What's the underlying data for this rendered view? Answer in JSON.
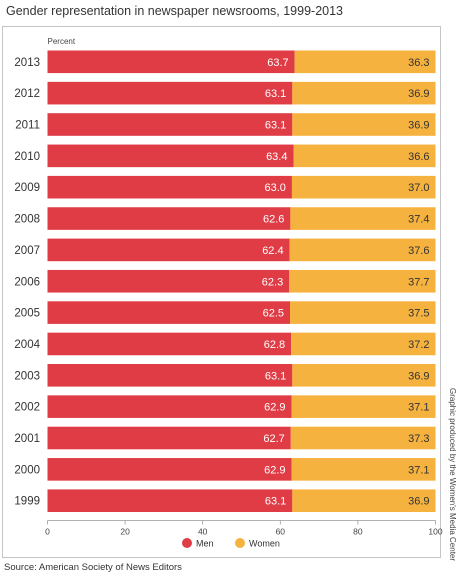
{
  "title": "Gender representation in newspaper newsrooms, 1999-2013",
  "side_note": "Graphic produced by the Women's Media Center",
  "source": "Source: American Society of News Editors",
  "chart_data": {
    "type": "bar",
    "stacked": true,
    "orientation": "horizontal",
    "categories": [
      "2013",
      "2012",
      "2011",
      "2010",
      "2009",
      "2008",
      "2007",
      "2006",
      "2005",
      "2004",
      "2003",
      "2002",
      "2001",
      "2000",
      "1999"
    ],
    "series": [
      {
        "name": "Men",
        "color": "#e03c45",
        "values": [
          63.7,
          63.1,
          63.1,
          63.4,
          63.0,
          62.6,
          62.4,
          62.3,
          62.5,
          62.8,
          63.1,
          62.9,
          62.7,
          62.9,
          63.1
        ],
        "labels": [
          "63.7",
          "63.1",
          "63.1",
          "63.4",
          "63.0",
          "62.6",
          "62.4",
          "62.3",
          "62.5",
          "62.8",
          "63.1",
          "62.9",
          "62.7",
          "62.9",
          "63.1"
        ]
      },
      {
        "name": "Women",
        "color": "#f6b23e",
        "values": [
          36.3,
          36.9,
          36.9,
          36.6,
          37.0,
          37.4,
          37.6,
          37.7,
          37.5,
          37.2,
          36.9,
          37.1,
          37.3,
          37.1,
          36.9
        ],
        "labels": [
          "36.3",
          "36.9",
          "36.9",
          "36.6",
          "37.0",
          "37.4",
          "37.6",
          "37.7",
          "37.5",
          "37.2",
          "36.9",
          "37.1",
          "37.3",
          "37.1",
          "36.9"
        ]
      }
    ],
    "xlabel": "Percent",
    "xlim": [
      0,
      100
    ],
    "xticks": [
      "0",
      "20",
      "40",
      "60",
      "80",
      "100"
    ],
    "legend": "bottom-center",
    "grid": false
  }
}
